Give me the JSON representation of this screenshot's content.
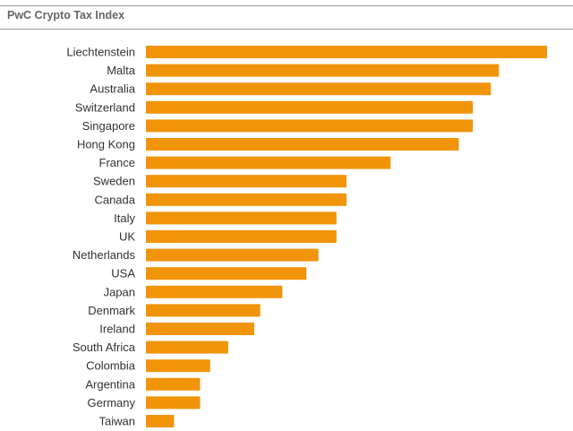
{
  "chart_data": {
    "type": "bar",
    "orientation": "horizontal",
    "title": "PwC Crypto Tax Index",
    "categories": [
      "Liechtenstein",
      "Malta",
      "Australia",
      "Switzerland",
      "Singapore",
      "Hong Kong",
      "France",
      "Sweden",
      "Canada",
      "Italy",
      "UK",
      "Netherlands",
      "USA",
      "Japan",
      "Denmark",
      "Ireland",
      "South Africa",
      "Colombia",
      "Argentina",
      "Germany",
      "Taiwan"
    ],
    "values": [
      100,
      88,
      86,
      81.5,
      81.5,
      78,
      61,
      50,
      50,
      47.5,
      47.5,
      43,
      40,
      34,
      28.5,
      27,
      20.5,
      16,
      13.5,
      13.5,
      7
    ],
    "xlim": [
      0,
      100
    ],
    "bar_color": "#f0940a",
    "grid": false,
    "legend": "none"
  }
}
